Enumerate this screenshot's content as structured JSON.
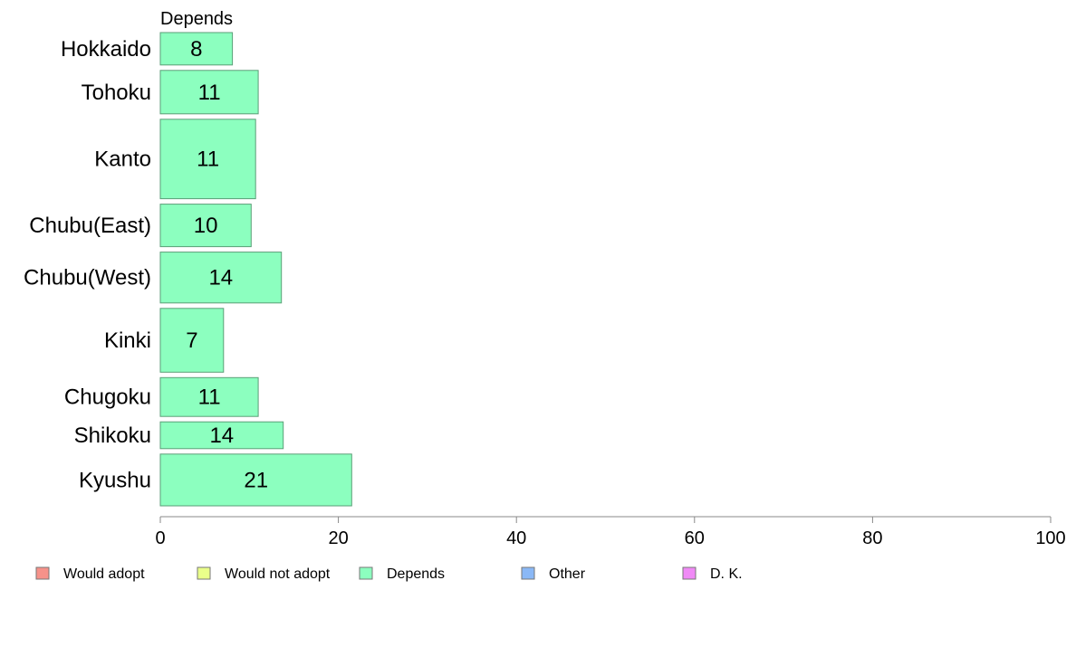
{
  "chart_data": {
    "type": "bar",
    "orientation": "horizontal",
    "panel_title": "Depends",
    "categories": [
      "Hokkaido",
      "Tohoku",
      "Kanto",
      "Chubu(East)",
      "Chubu(West)",
      "Kinki",
      "Chugoku",
      "Shikoku",
      "Kyushu"
    ],
    "values": [
      8,
      11,
      11,
      10,
      14,
      7,
      11,
      14,
      21
    ],
    "bar_values": [
      8.1,
      11.0,
      10.7,
      10.2,
      13.6,
      7.1,
      11.0,
      13.8,
      21.5
    ],
    "category_weights": [
      35,
      47,
      86,
      46,
      55,
      69,
      42,
      29,
      56
    ],
    "xlim": [
      0,
      100
    ],
    "xticks": [
      0,
      20,
      40,
      60,
      80,
      100
    ],
    "bar_color": "#8cffbf",
    "bar_stroke": "#5a9e77",
    "grid": false,
    "legend_position": "bottom",
    "legend": [
      {
        "label": "Would adopt",
        "color": "#f6928a"
      },
      {
        "label": "Would not adopt",
        "color": "#eaff8a"
      },
      {
        "label": "Depends",
        "color": "#8cffbf"
      },
      {
        "label": "Other",
        "color": "#8ab8f6"
      },
      {
        "label": "D. K.",
        "color": "#f08af6"
      }
    ]
  }
}
